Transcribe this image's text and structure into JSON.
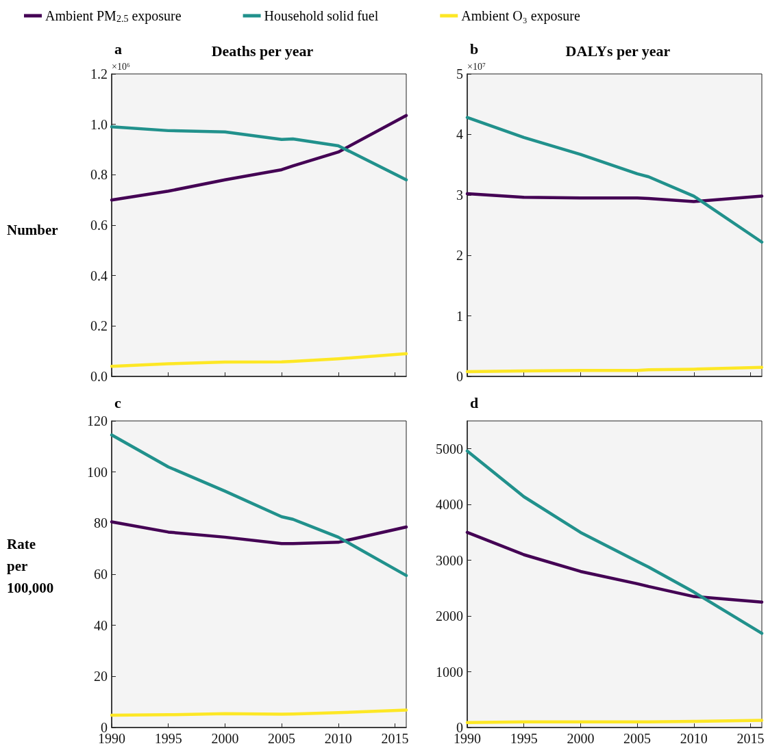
{
  "chart_data": [
    {
      "type": "line",
      "title": "Deaths per year",
      "ylabel": "Number",
      "annotations": [
        "a",
        "×10⁶"
      ],
      "legend": "top",
      "tick_labels": "y",
      "grid": false,
      "x": [
        1990,
        1995,
        2000,
        2005,
        2006,
        2010,
        2016
      ],
      "xlim": [
        1990,
        2016
      ],
      "xticks": [
        1990,
        1995,
        2000,
        2005,
        2010,
        2015
      ],
      "ylim": [
        0,
        1.2
      ],
      "yticks": [
        {
          "value": 0,
          "label": "0.0"
        },
        0.2,
        0.4,
        0.6,
        0.8,
        {
          "value": 1,
          "label": "1.0"
        },
        1.2
      ],
      "series": [
        {
          "name": "Ambient PM$_{2.5}$ exposure",
          "color": "#440154",
          "values": [
            0.7,
            0.735,
            0.78,
            0.82,
            0.835,
            0.89,
            1.035
          ]
        },
        {
          "name": "Household solid fuel",
          "color": "#21918c",
          "values": [
            0.99,
            0.975,
            0.97,
            0.94,
            0.942,
            0.915,
            0.78
          ]
        },
        {
          "name": "Ambient O₃ exposure",
          "color": "#fde725",
          "values": [
            0.04,
            0.05,
            0.057,
            0.058,
            0.06,
            0.07,
            0.09
          ]
        }
      ]
    },
    {
      "type": "line",
      "title": "DALYs per year",
      "annotations": [
        "b",
        "×10⁷"
      ],
      "tick_labels": "y",
      "grid": false,
      "x": [
        1990,
        1995,
        2000,
        2005,
        2006,
        2010,
        2016
      ],
      "xlim": [
        1990,
        2016
      ],
      "xticks": [
        1990,
        1995,
        2000,
        2005,
        2010,
        2015
      ],
      "ylim": [
        0,
        5
      ],
      "yticks": [
        0,
        1,
        2,
        3,
        4,
        5
      ],
      "series": [
        {
          "color": "#440154",
          "values": [
            3.02,
            2.96,
            2.95,
            2.95,
            2.94,
            2.89,
            2.98
          ]
        },
        {
          "color": "#21918c",
          "values": [
            4.28,
            3.95,
            3.67,
            3.35,
            3.3,
            2.98,
            2.22
          ]
        },
        {
          "color": "#fde725",
          "values": [
            0.08,
            0.09,
            0.1,
            0.1,
            0.11,
            0.12,
            0.15
          ]
        }
      ]
    },
    {
      "type": "line",
      "ylabel": "Rate per 100,000",
      "annotations": [
        "c"
      ],
      "grid": false,
      "x": [
        1990,
        1995,
        2000,
        2005,
        2006,
        2010,
        2016
      ],
      "xlim": [
        1990,
        2016
      ],
      "xticks": [
        1990,
        1995,
        2000,
        2005,
        2010,
        2015
      ],
      "ylim": [
        0,
        120
      ],
      "yticks": [
        0,
        20,
        40,
        60,
        80,
        100,
        120
      ],
      "series": [
        {
          "color": "#440154",
          "values": [
            80.5,
            76.5,
            74.5,
            72,
            72,
            72.5,
            78.5
          ]
        },
        {
          "color": "#21918c",
          "values": [
            114.5,
            102,
            92.5,
            82.5,
            81.5,
            74.5,
            59.5
          ]
        },
        {
          "color": "#fde725",
          "values": [
            4.8,
            5.0,
            5.4,
            5.2,
            5.3,
            5.8,
            6.8
          ]
        }
      ]
    },
    {
      "type": "line",
      "annotations": [
        "d"
      ],
      "grid": false,
      "x": [
        1990,
        1995,
        2000,
        2005,
        2006,
        2010,
        2016
      ],
      "xlim": [
        1990,
        2016
      ],
      "xticks": [
        1990,
        1995,
        2000,
        2005,
        2010,
        2015
      ],
      "ylim": [
        0,
        5500
      ],
      "yticks": [
        0,
        1000,
        2000,
        3000,
        4000,
        5000
      ],
      "series": [
        {
          "color": "#440154",
          "values": [
            3500,
            3100,
            2800,
            2580,
            2530,
            2350,
            2250
          ]
        },
        {
          "color": "#21918c",
          "values": [
            4960,
            4140,
            3500,
            2980,
            2880,
            2430,
            1690
          ]
        },
        {
          "color": "#fde725",
          "values": [
            90,
            100,
            100,
            100,
            100,
            110,
            130
          ]
        }
      ]
    }
  ]
}
